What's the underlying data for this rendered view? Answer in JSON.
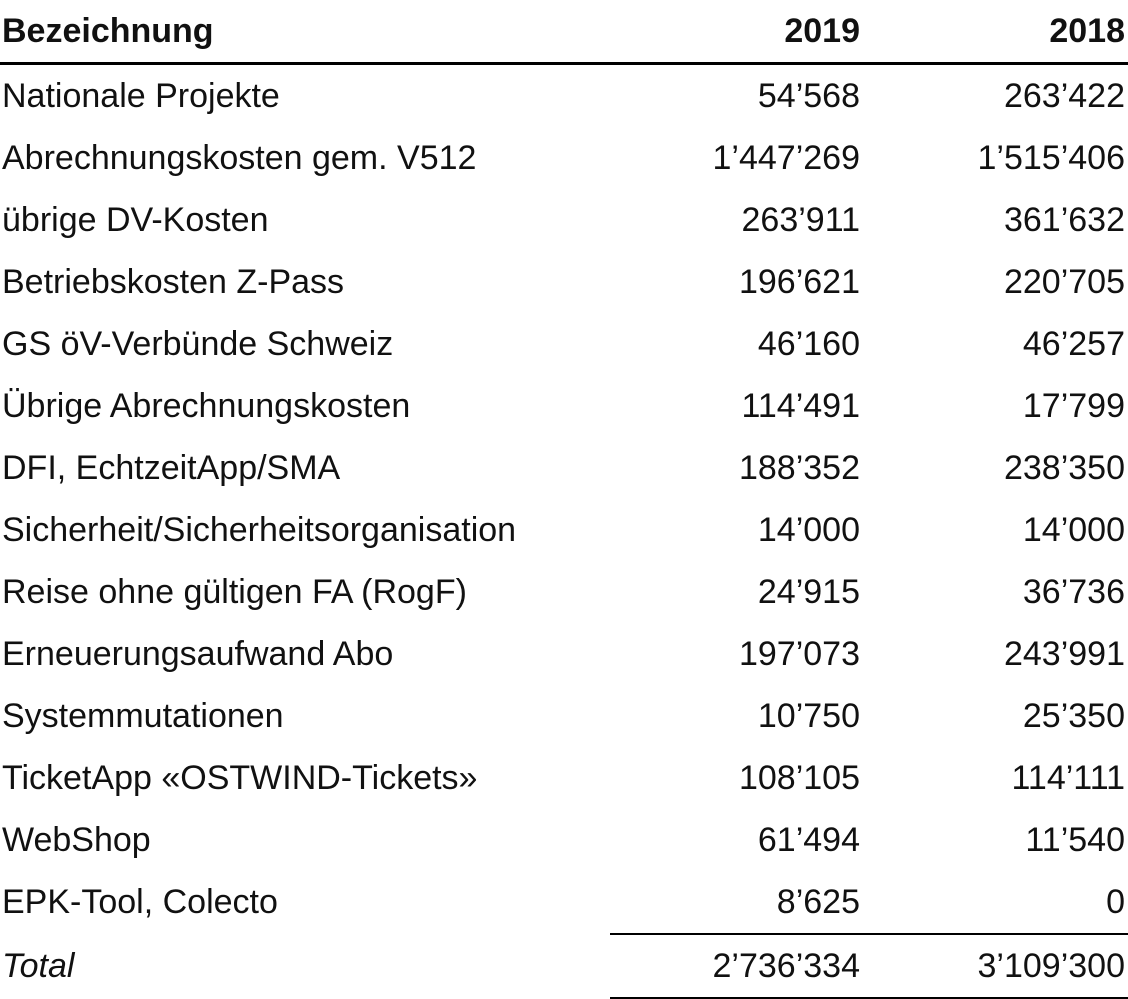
{
  "table": {
    "columns": [
      "Bezeichnung",
      "2019",
      "2018"
    ],
    "rows": [
      {
        "label": "Nationale Projekte",
        "y2019": "54’568",
        "y2018": "263’422"
      },
      {
        "label": "Abrechnungskosten gem. V512",
        "y2019": "1’447’269",
        "y2018": "1’515’406"
      },
      {
        "label": "übrige DV-Kosten",
        "y2019": "263’911",
        "y2018": "361’632"
      },
      {
        "label": "Betriebskosten Z-Pass",
        "y2019": "196’621",
        "y2018": "220’705"
      },
      {
        "label": "GS öV-Verbünde Schweiz",
        "y2019": "46’160",
        "y2018": "46’257"
      },
      {
        "label": "Übrige Abrechnungskosten",
        "y2019": "114’491",
        "y2018": "17’799"
      },
      {
        "label": "DFI, EchtzeitApp/SMA",
        "y2019": "188’352",
        "y2018": "238’350"
      },
      {
        "label": "Sicherheit/Sicherheitsorganisation",
        "y2019": "14’000",
        "y2018": "14’000"
      },
      {
        "label": "Reise ohne gültigen FA (RogF)",
        "y2019": "24’915",
        "y2018": "36’736"
      },
      {
        "label": "Erneuerungsaufwand Abo",
        "y2019": "197’073",
        "y2018": "243’991"
      },
      {
        "label": "Systemmutationen",
        "y2019": "10’750",
        "y2018": "25’350"
      },
      {
        "label": "TicketApp «OSTWIND-Tickets»",
        "y2019": "108’105",
        "y2018": "114’111"
      },
      {
        "label": "WebShop",
        "y2019": "61’494",
        "y2018": "11’540"
      },
      {
        "label": "EPK-Tool, Colecto",
        "y2019": "8’625",
        "y2018": "0"
      }
    ],
    "total": {
      "label": "Total",
      "y2019": "2’736’334",
      "y2018": "3’109’300"
    }
  },
  "colors": {
    "text": "#111111",
    "rule": "#000000"
  }
}
